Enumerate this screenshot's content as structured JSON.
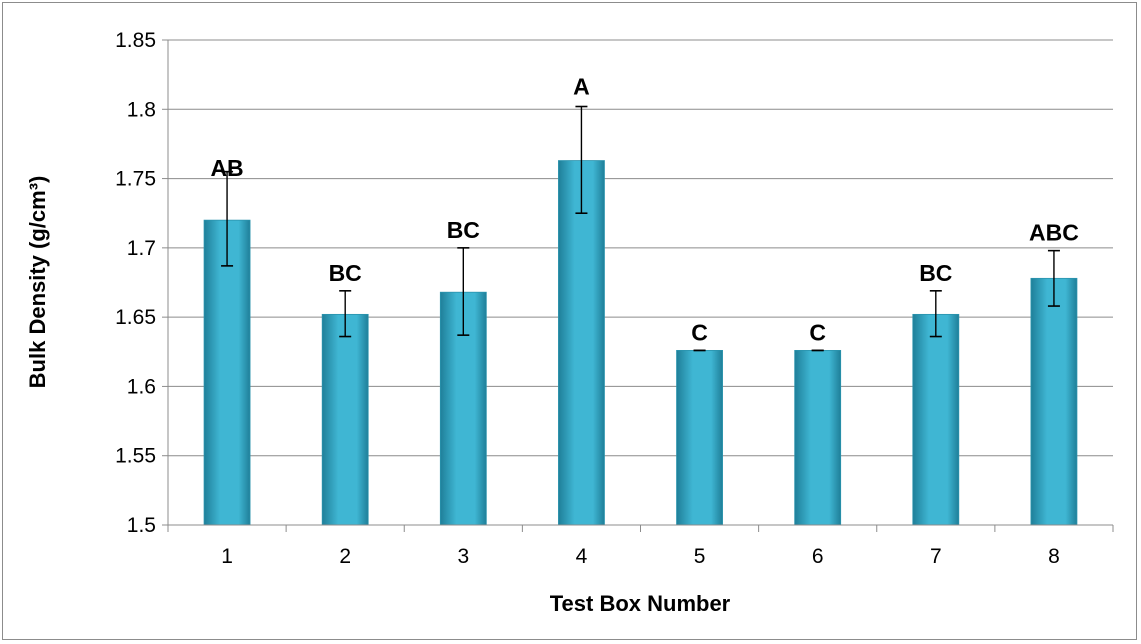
{
  "chart_data": {
    "type": "bar",
    "title": "",
    "xlabel": "Test  Box Number",
    "ylabel": "Bulk Density (g/cm³)",
    "ylim": [
      1.5,
      1.85
    ],
    "yticks": [
      "1.5",
      "1.55",
      "1.6",
      "1.65",
      "1.7",
      "1.75",
      "1.8",
      "1.85"
    ],
    "grid": true,
    "legend": "none",
    "bar_color": "#3fb6d3",
    "bar_color_dark": "#1f7f99",
    "categories": [
      "1",
      "2",
      "3",
      "4",
      "5",
      "6",
      "7",
      "8"
    ],
    "values": [
      1.72,
      1.652,
      1.668,
      1.763,
      1.626,
      1.626,
      1.652,
      1.678
    ],
    "error_low": [
      1.687,
      1.636,
      1.637,
      1.725,
      1.626,
      1.626,
      1.636,
      1.658
    ],
    "error_high": [
      1.755,
      1.669,
      1.7,
      1.802,
      1.626,
      1.626,
      1.669,
      1.698
    ],
    "letters": [
      "AB",
      "BC",
      "BC",
      "A",
      "C",
      "C",
      "BC",
      "ABC"
    ]
  }
}
